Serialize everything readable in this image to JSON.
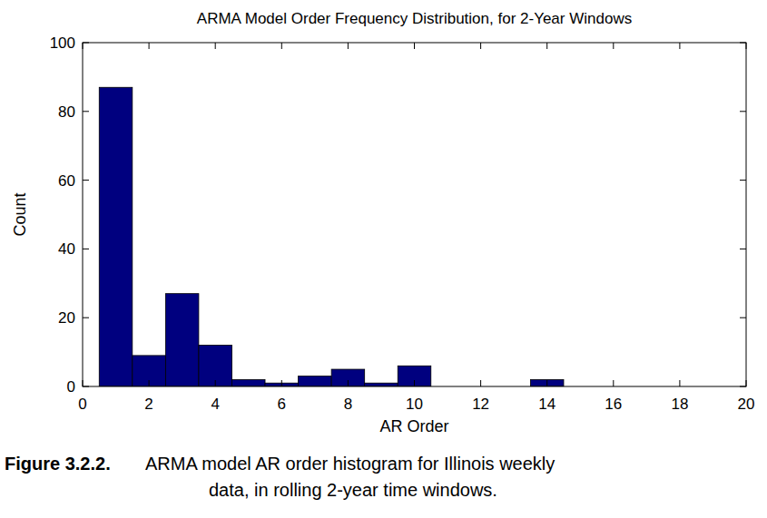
{
  "chart_data": {
    "type": "histogram",
    "title": "ARMA Model Order Frequency Distribution, for 2-Year Windows",
    "x_label": "AR Order",
    "y_label": "Count",
    "bins": [
      0.5,
      1.5,
      2.5,
      3.5,
      4.5,
      5.5,
      6.5,
      7.5,
      8.5,
      9.5,
      10.5,
      11.5,
      12.5,
      13.5,
      14.5,
      15.5,
      16.5,
      17.5,
      18.5,
      19.5
    ],
    "values": [
      87,
      9,
      27,
      12,
      2,
      1,
      3,
      5,
      1,
      6,
      0,
      0,
      0,
      2,
      0,
      0,
      0,
      0,
      0
    ],
    "color": "#00007f",
    "xlim": [
      0,
      20
    ],
    "xticks": [
      0,
      2,
      4,
      6,
      8,
      10,
      12,
      14,
      16,
      18,
      20
    ],
    "ylim": [
      0,
      100
    ],
    "yticks": [
      0,
      20,
      40,
      60,
      80,
      100
    ],
    "grid": false,
    "caption": {
      "label": "Figure 3.2.2.",
      "lines": [
        "ARMA model AR order histogram for Illinois weekly",
        "data, in rolling 2-year time windows."
      ]
    }
  }
}
